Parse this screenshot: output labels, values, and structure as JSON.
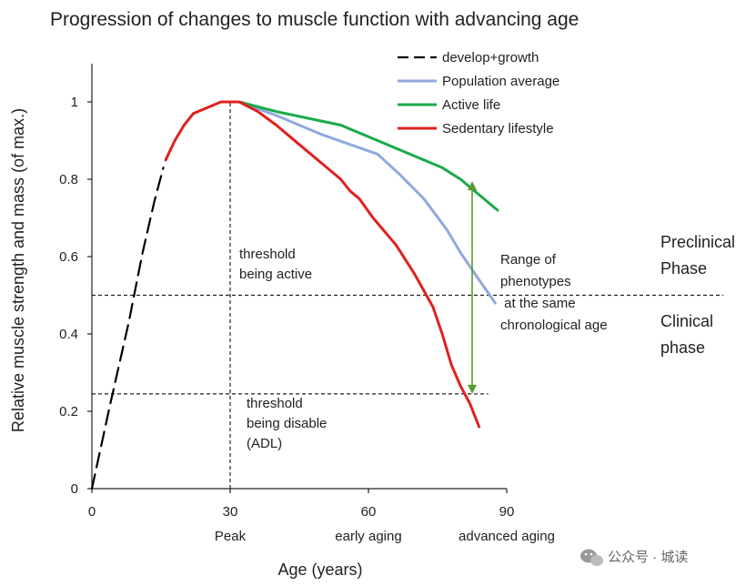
{
  "chart_data": {
    "type": "line",
    "title": "Progression of  changes to muscle function with advancing age",
    "xlabel": "Age (years)",
    "ylabel": "Relative muscle strength and mass (of max.)",
    "xlim": [
      0,
      90
    ],
    "ylim": [
      0,
      1.1
    ],
    "x_ticks": [
      {
        "value": 0,
        "label": "0"
      },
      {
        "value": 30,
        "label": "30"
      },
      {
        "value": 60,
        "label": "60"
      },
      {
        "value": 90,
        "label": "90"
      }
    ],
    "y_ticks": [
      {
        "value": 0,
        "label": "0"
      },
      {
        "value": 0.2,
        "label": "0.2"
      },
      {
        "value": 0.4,
        "label": "0.4"
      },
      {
        "value": 0.6,
        "label": "0.6"
      },
      {
        "value": 0.8,
        "label": "0.8"
      },
      {
        "value": 1,
        "label": "1"
      }
    ],
    "x_sublabels": [
      {
        "value": 30,
        "label": "Peak"
      },
      {
        "value": 60,
        "label": "early aging"
      },
      {
        "value": 90,
        "label": "advanced aging"
      }
    ],
    "grid": false,
    "legend_position": "top-right",
    "series": [
      {
        "name": "develop+growth",
        "color": "#000000",
        "dash": true,
        "points": [
          [
            0,
            0
          ],
          [
            4,
            0.22
          ],
          [
            8,
            0.43
          ],
          [
            11,
            0.61
          ],
          [
            13.5,
            0.74
          ],
          [
            15.5,
            0.83
          ]
        ]
      },
      {
        "name": "Population average",
        "color": "#8faadc",
        "points": [
          [
            32,
            1.0
          ],
          [
            40,
            0.965
          ],
          [
            50,
            0.915
          ],
          [
            62,
            0.865
          ],
          [
            67,
            0.81
          ],
          [
            72,
            0.75
          ],
          [
            77,
            0.67
          ],
          [
            80,
            0.61
          ],
          [
            84,
            0.54
          ],
          [
            87.5,
            0.48
          ]
        ]
      },
      {
        "name": "Active life",
        "color": "#1aaa4a",
        "points": [
          [
            32,
            1.0
          ],
          [
            40,
            0.975
          ],
          [
            48,
            0.955
          ],
          [
            54,
            0.94
          ],
          [
            60,
            0.91
          ],
          [
            66,
            0.88
          ],
          [
            70,
            0.86
          ],
          [
            76,
            0.83
          ],
          [
            80,
            0.8
          ],
          [
            84,
            0.76
          ],
          [
            88,
            0.72
          ]
        ]
      },
      {
        "name": "Sedentary lifestyle",
        "color": "#e02020",
        "points": [
          [
            16,
            0.85
          ],
          [
            18,
            0.9
          ],
          [
            20,
            0.94
          ],
          [
            22,
            0.97
          ],
          [
            25,
            0.985
          ],
          [
            28,
            1.0
          ],
          [
            30,
            1.0
          ],
          [
            32,
            1.0
          ],
          [
            36,
            0.975
          ],
          [
            40,
            0.94
          ],
          [
            45,
            0.89
          ],
          [
            50,
            0.84
          ],
          [
            54,
            0.8
          ],
          [
            56,
            0.77
          ],
          [
            58,
            0.75
          ],
          [
            61,
            0.7
          ],
          [
            66,
            0.63
          ],
          [
            70,
            0.555
          ],
          [
            74,
            0.47
          ],
          [
            76,
            0.4
          ],
          [
            78,
            0.32
          ],
          [
            80,
            0.265
          ],
          [
            82,
            0.22
          ],
          [
            84,
            0.16
          ]
        ]
      }
    ],
    "reference_lines": [
      {
        "kind": "vertical",
        "x": 30,
        "y_from": 0,
        "y_to": 1.0,
        "dash": true
      },
      {
        "kind": "horizontal",
        "y": 0.5,
        "x_from": 0,
        "x_to": 137,
        "dash": true
      },
      {
        "kind": "horizontal",
        "y": 0.245,
        "x_from": 0,
        "x_to": 86,
        "dash": true
      }
    ],
    "range_arrow": {
      "x": 82.5,
      "y_from": 0.795,
      "y_to": 0.245,
      "color": "#5a9a2a"
    },
    "annotations": {
      "threshold_active": [
        "threshold",
        "being active"
      ],
      "threshold_disable": [
        "threshold",
        "being disable",
        "(ADL)"
      ],
      "range_label": [
        "Range of",
        "phenotypes",
        " at the same",
        "chronological age"
      ],
      "preclinical": [
        "Preclinical",
        "Phase"
      ],
      "clinical": [
        "Clinical",
        "phase"
      ]
    }
  },
  "watermark": "公众号 · 城读"
}
